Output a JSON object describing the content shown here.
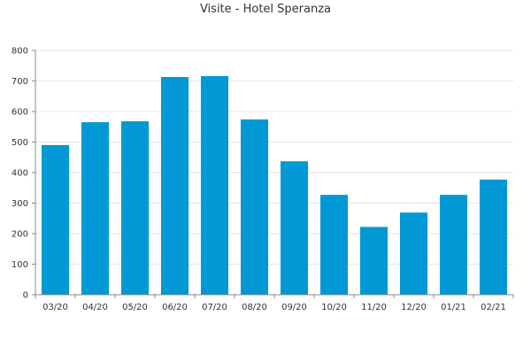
{
  "chart_data": {
    "type": "bar",
    "title": "Visite - Hotel Speranza",
    "xlabel": "",
    "ylabel": "",
    "categories": [
      "03/20",
      "04/20",
      "05/20",
      "06/20",
      "07/20",
      "08/20",
      "09/20",
      "10/20",
      "11/20",
      "12/20",
      "01/21",
      "02/21"
    ],
    "values": [
      490,
      565,
      568,
      713,
      716,
      574,
      437,
      327,
      222,
      269,
      327,
      377
    ],
    "ylim": [
      0,
      800
    ],
    "yticks": [
      0,
      100,
      200,
      300,
      400,
      500,
      600,
      700,
      800
    ],
    "grid": true,
    "legend": "none",
    "bar_color": "#0099d5",
    "grid_color": "#e6e6e6",
    "axis_color": "#888888"
  }
}
